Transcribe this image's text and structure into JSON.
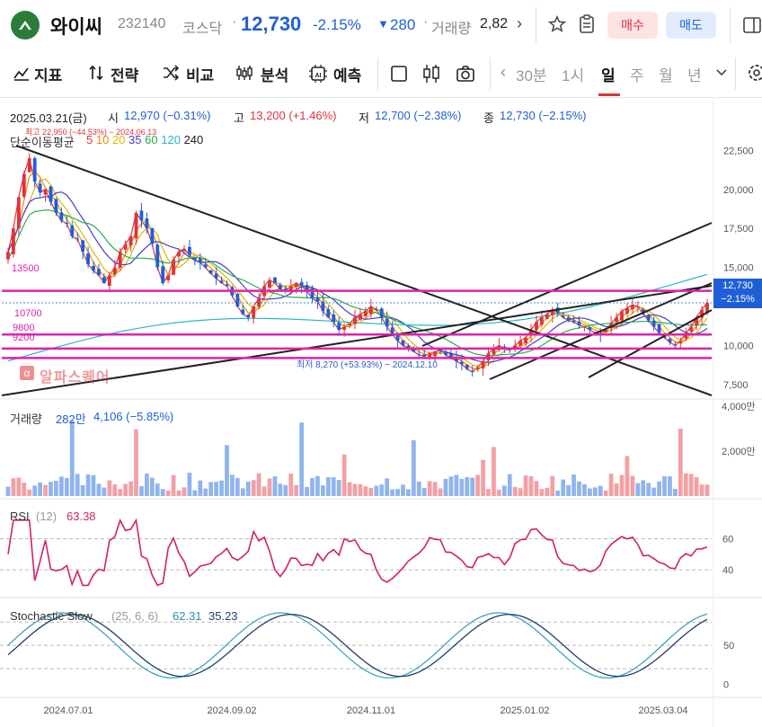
{
  "header": {
    "name": "와이씨",
    "code": "232140",
    "market": "코스닥",
    "price": "12,730",
    "change_pct": "-2.15%",
    "change_arrow": "▼",
    "change_abs": "280",
    "volume_label": "거래량",
    "volume_value": "2,82",
    "buy_label": "매수",
    "sell_label": "매도"
  },
  "toolbar": {
    "items": [
      "지표",
      "전략",
      "비교",
      "분석",
      "예측"
    ],
    "periods": [
      "30분",
      "1시",
      "일",
      "주",
      "월",
      "년"
    ],
    "active_period": "일"
  },
  "info": {
    "date": "2025.03.21(금)",
    "open_label": "시",
    "open": "12,970 (−0.31%)",
    "high_label": "고",
    "high": "13,200 (+1.46%)",
    "low_label": "저",
    "low": "12,700 (−2.38%)",
    "close_label": "종",
    "close": "12,730 (−2.15%)",
    "ma_label": "단순이동평균",
    "ma_periods": [
      "5",
      "10",
      "20",
      "35",
      "60",
      "120",
      "240"
    ],
    "high_note": "최고 22,950 (−44.53%) − 2024.06.13",
    "low_note": "최저 8,270 (+53.93%) − 2024.12.10",
    "watermark": "알파스퀘어"
  },
  "levels": {
    "l13500": "13500",
    "l10700": "10700",
    "l9800": "9800",
    "l9200": "9200"
  },
  "price_tag": {
    "price": "12,730",
    "pct": "−2.15%"
  },
  "volume": {
    "label": "거래량",
    "value": "282만",
    "ma": "4,106 (−5.85%)"
  },
  "rsi": {
    "label": "RSI",
    "param": "(12)",
    "value": "63.38"
  },
  "stoch": {
    "label": "Stochastic Slow",
    "param": "(25, 6, 6)",
    "k": "62.31",
    "d": "35.23"
  },
  "colors": {
    "up": "#e0333a",
    "down": "#1f5fd6",
    "level": "#e020b0",
    "ma5": "#e0333a",
    "ma10": "#f08a00",
    "ma20": "#e2b600",
    "ma35": "#4a3bd0",
    "ma60": "#22b24c",
    "ma120": "#29b6c8",
    "ma240": "#222222",
    "rsi": "#d0206a"
  },
  "chart_data": {
    "type": "candlestick",
    "x_ticks": [
      "2024.07.01",
      "2024.09.02",
      "2024.11.01",
      "2025.01.02",
      "2025.03.04"
    ],
    "price_axis_ticks": [
      "22,500",
      "20,000",
      "17,500",
      "15,000",
      "12,730",
      "10,000",
      "7,500"
    ],
    "volume_axis_ticks": [
      "4,000만",
      "2,000만"
    ],
    "rsi_axis_ticks": [
      "60",
      "40"
    ],
    "stoch_axis_ticks": [
      "50",
      "0"
    ],
    "horizontal_levels": [
      13500,
      10700,
      9800,
      9200
    ],
    "price_series": [
      16000,
      17500,
      19500,
      21000,
      22000,
      20500,
      19800,
      20000,
      19200,
      18500,
      18000,
      17800,
      17000,
      16800,
      16000,
      15200,
      14800,
      14500,
      14000,
      14500,
      15000,
      16000,
      16500,
      17000,
      18500,
      18000,
      17500,
      16500,
      15000,
      14000,
      14500,
      15500,
      16000,
      16200,
      15800,
      15500,
      15300,
      15000,
      14600,
      14300,
      14000,
      13800,
      13200,
      12500,
      12000,
      11800,
      12500,
      13000,
      13800,
      14200,
      14000,
      13600,
      13500,
      13800,
      14000,
      13800,
      13500,
      13000,
      12800,
      12200,
      11800,
      11500,
      11000,
      11200,
      11400,
      11800,
      12000,
      12200,
      12500,
      12300,
      11800,
      11200,
      10700,
      10300,
      10000,
      9800,
      9600,
      9400,
      9300,
      9500,
      9600,
      9700,
      9400,
      9200,
      9000,
      8800,
      8500,
      8300,
      8600,
      9000,
      9500,
      9800,
      10000,
      9800,
      9700,
      10000,
      10300,
      10500,
      11000,
      11500,
      11800,
      12000,
      12300,
      12100,
      11800,
      11600,
      11500,
      11300,
      11200,
      11000,
      10800,
      10700,
      11000,
      11400,
      11800,
      12200,
      12400,
      12600,
      12500,
      12000,
      11600,
      11200,
      10800,
      10500,
      10200,
      10000,
      10300,
      10800,
      11200,
      11800,
      12300,
      12730
    ]
  }
}
